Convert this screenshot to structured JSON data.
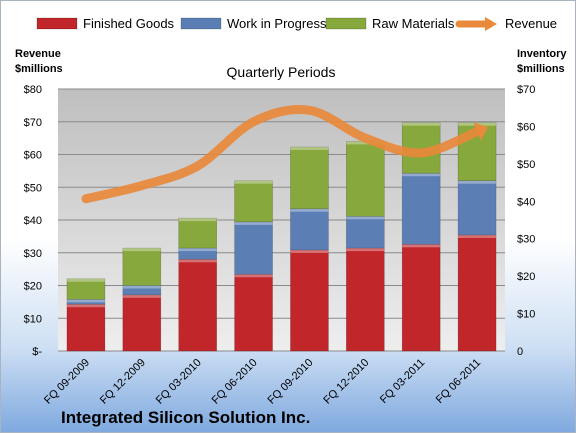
{
  "chart_data": {
    "type": "bar",
    "subtitle": "Quarterly Periods",
    "company": "Integrated Silicon Solution Inc.",
    "left_axis_title": [
      "Revenue",
      "$millions"
    ],
    "right_axis_title": [
      "Inventory",
      "$millions"
    ],
    "categories": [
      "FQ 09-2009",
      "FQ 12-2009",
      "FQ 03-2010",
      "FQ 06-2010",
      "FQ 09-2010",
      "FQ 12-2010",
      "FQ 03-2011",
      "FQ 06-2011"
    ],
    "stacked_series": [
      {
        "name": "Finished Goods",
        "color": "#c0262a",
        "values": [
          12.5,
          15.0,
          24.5,
          20.5,
          27.0,
          27.5,
          28.5,
          31.0
        ]
      },
      {
        "name": "Work in Progress",
        "color": "#5b7fb5",
        "values": [
          1.3,
          2.5,
          3.0,
          14.0,
          11.0,
          8.5,
          19.0,
          14.5
        ]
      },
      {
        "name": "Raw Materials",
        "color": "#86a83c",
        "values": [
          5.5,
          10.0,
          8.0,
          11.0,
          16.5,
          20.0,
          13.5,
          15.5
        ]
      }
    ],
    "line_series": {
      "name": "Revenue",
      "color": "#e8893b",
      "values": [
        46.5,
        50.5,
        56.5,
        70.0,
        73.5,
        65.0,
        60.5,
        67.0
      ]
    },
    "left_axis": {
      "min": 0,
      "max": 80,
      "step": 10,
      "tick_labels": [
        "$-",
        "$10",
        "$20",
        "$30",
        "$40",
        "$50",
        "$60",
        "$70",
        "$80"
      ]
    },
    "right_axis": {
      "min": 0,
      "max": 70,
      "step": 10,
      "tick_labels": [
        "0",
        "$10",
        "$20",
        "$30",
        "$40",
        "$50",
        "$60",
        "$70"
      ]
    },
    "grid": true,
    "legend_position": "top"
  }
}
